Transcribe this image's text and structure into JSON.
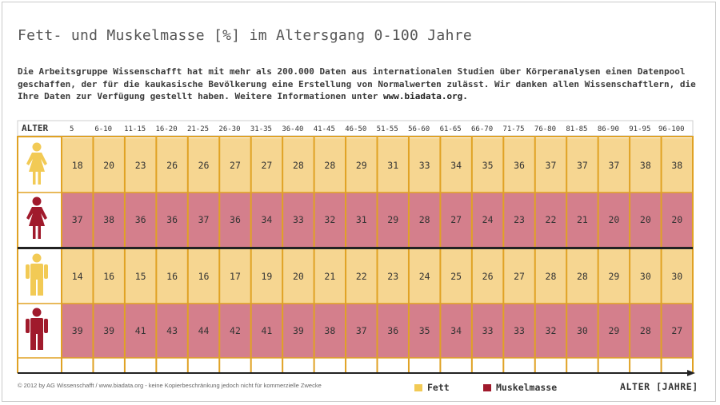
{
  "title": "Fett- und Muskelmasse [%] im Altersgang 0-100 Jahre",
  "intro": {
    "text": "Die Arbeitsgruppe Wissenschafft hat mit mehr als 200.000 Daten aus internationalen Studien über Körperanalysen einen Datenpool geschaffen, der für die kaukasische Bevölkerung eine Erstellung von Normalwerten zulässt. Wir danken allen Wissenschaftlern, die Ihre Daten zur Verfügung gestellt haben. Weitere Informationen unter",
    "website": "www.biadata.org."
  },
  "chart_data": {
    "type": "table",
    "header_label": "ALTER",
    "x_axis_label": "ALTER [JAHRE]",
    "categories": [
      "5",
      "6-10",
      "11-15",
      "16-20",
      "21-25",
      "26-30",
      "31-35",
      "36-40",
      "41-45",
      "46-50",
      "51-55",
      "56-60",
      "61-65",
      "66-70",
      "71-75",
      "76-80",
      "81-85",
      "86-90",
      "91-95",
      "96-100"
    ],
    "rows": [
      {
        "group": "female",
        "measure": "Fett",
        "icon": "female-figure-icon",
        "values": [
          18,
          20,
          23,
          26,
          26,
          27,
          27,
          28,
          28,
          29,
          31,
          33,
          34,
          35,
          36,
          37,
          37,
          37,
          38,
          38
        ]
      },
      {
        "group": "female",
        "measure": "Muskelmasse",
        "icon": "female-figure-icon",
        "values": [
          37,
          38,
          36,
          36,
          37,
          36,
          34,
          33,
          32,
          31,
          29,
          28,
          27,
          24,
          23,
          22,
          21,
          20,
          20,
          20
        ]
      },
      {
        "group": "male",
        "measure": "Fett",
        "icon": "male-figure-icon",
        "values": [
          14,
          16,
          15,
          16,
          16,
          17,
          19,
          20,
          21,
          22,
          23,
          24,
          25,
          26,
          27,
          28,
          28,
          29,
          30,
          30
        ]
      },
      {
        "group": "male",
        "measure": "Muskelmasse",
        "icon": "male-figure-icon",
        "values": [
          39,
          39,
          41,
          43,
          44,
          42,
          41,
          39,
          38,
          37,
          36,
          35,
          34,
          33,
          33,
          32,
          30,
          29,
          28,
          27
        ]
      }
    ],
    "legend": [
      {
        "label": "Fett",
        "color": "#f2ca55"
      },
      {
        "label": "Muskelmasse",
        "color": "#a01a2c"
      }
    ]
  },
  "colors": {
    "fat_fill": "#f6d691",
    "muscle_fill": "#d47f8c",
    "fat_icon": "#f2ca55",
    "muscle_icon": "#a01a2c",
    "column_line": "#e0a224",
    "group_divider": "#222222",
    "axis": "#222222"
  },
  "footer": {
    "copyright": "© 2012 by AG Wissenschafft / www.biadata.org  - keine Kopierbeschränkung jedoch nicht für kommerzielle Zwecke"
  }
}
